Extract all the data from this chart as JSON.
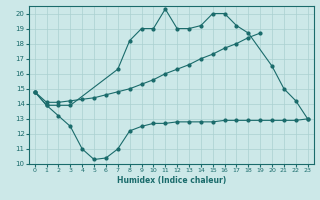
{
  "xlabel": "Humidex (Indice chaleur)",
  "series": {
    "top": {
      "x": [
        0,
        1,
        2,
        3,
        7,
        8,
        9,
        10,
        11,
        12,
        13,
        14,
        15,
        16,
        17,
        18,
        20,
        21,
        22,
        23
      ],
      "y": [
        14.8,
        13.9,
        13.9,
        13.9,
        16.3,
        18.2,
        19.0,
        19.0,
        20.3,
        19.0,
        19.0,
        19.2,
        20.0,
        20.0,
        19.2,
        18.7,
        16.5,
        15.0,
        14.2,
        13.0
      ]
    },
    "mid": {
      "x": [
        0,
        1,
        2,
        3,
        4,
        5,
        6,
        7,
        8,
        9,
        10,
        11,
        12,
        13,
        14,
        15,
        16,
        17,
        18,
        19
      ],
      "y": [
        14.8,
        14.1,
        14.1,
        14.2,
        14.3,
        14.4,
        14.6,
        14.8,
        15.0,
        15.3,
        15.6,
        16.0,
        16.3,
        16.6,
        17.0,
        17.3,
        17.7,
        18.0,
        18.4,
        18.7
      ]
    },
    "bot": {
      "x": [
        0,
        1,
        2,
        3,
        4,
        5,
        6,
        7,
        8,
        9,
        10,
        11,
        12,
        13,
        14,
        15,
        16,
        17,
        18,
        19,
        20,
        21,
        22,
        23
      ],
      "y": [
        14.8,
        13.9,
        13.2,
        12.5,
        11.0,
        10.3,
        10.4,
        11.0,
        12.2,
        12.5,
        12.7,
        12.7,
        12.8,
        12.8,
        12.8,
        12.8,
        12.9,
        12.9,
        12.9,
        12.9,
        12.9,
        12.9,
        12.9,
        13.0
      ]
    }
  },
  "color": "#1a6b6b",
  "bg_color": "#cce8e8",
  "grid_color": "#aad0d0",
  "ylim": [
    10,
    20.5
  ],
  "xlim": [
    -0.5,
    23.5
  ],
  "yticks": [
    10,
    11,
    12,
    13,
    14,
    15,
    16,
    17,
    18,
    19,
    20
  ],
  "xticks": [
    0,
    1,
    2,
    3,
    4,
    5,
    6,
    7,
    8,
    9,
    10,
    11,
    12,
    13,
    14,
    15,
    16,
    17,
    18,
    19,
    20,
    21,
    22,
    23
  ]
}
